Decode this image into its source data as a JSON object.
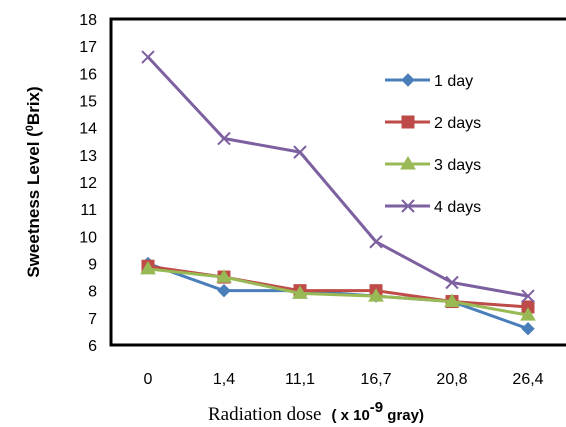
{
  "chart_data": {
    "type": "line",
    "categories": [
      "0",
      "1,4",
      "11,1",
      "16,7",
      "20,8",
      "26,4"
    ],
    "ylabel": {
      "prefix": "Sweetness Level (",
      "sup": "0",
      "suffix": "Brix)"
    },
    "xlabel": {
      "text": "Radiation dose",
      "unit_prefix": "( x 10",
      "unit_sup": "-9",
      "unit_suffix": " gray)"
    },
    "ylim": [
      6,
      18
    ],
    "yticks": [
      "6",
      "7",
      "8",
      "9",
      "10",
      "11",
      "12",
      "13",
      "14",
      "15",
      "16",
      "17",
      "18"
    ],
    "grid": false,
    "legend": "right",
    "series": [
      {
        "name": "1 day",
        "color": "#4a7ebb",
        "marker": "diamond",
        "values": [
          9.0,
          8.0,
          8.0,
          7.8,
          7.6,
          6.6
        ]
      },
      {
        "name": "2 days",
        "color": "#be4b48",
        "marker": "square",
        "values": [
          8.9,
          8.5,
          8.0,
          8.0,
          7.6,
          7.4
        ]
      },
      {
        "name": "3 days",
        "color": "#98b954",
        "marker": "triangle",
        "values": [
          8.8,
          8.5,
          7.9,
          7.8,
          7.6,
          7.1
        ]
      },
      {
        "name": "4 days",
        "color": "#7d60a0",
        "marker": "x",
        "values": [
          16.6,
          13.6,
          13.1,
          9.8,
          8.3,
          7.8
        ]
      }
    ]
  }
}
